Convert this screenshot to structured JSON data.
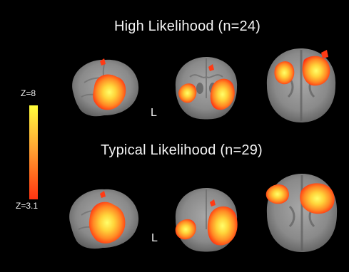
{
  "groups": [
    {
      "label": "High Likelihood (n=24)",
      "orientation_marker": "L"
    },
    {
      "label": "Typical Likelihood (n=29)",
      "orientation_marker": "L"
    }
  ],
  "colorbar": {
    "max_label": "Z=8",
    "min_label": "Z=3.1",
    "colors": [
      "#ffff3a",
      "#ffa032",
      "#ff3412"
    ]
  },
  "views": [
    "sagittal",
    "coronal",
    "axial"
  ]
}
